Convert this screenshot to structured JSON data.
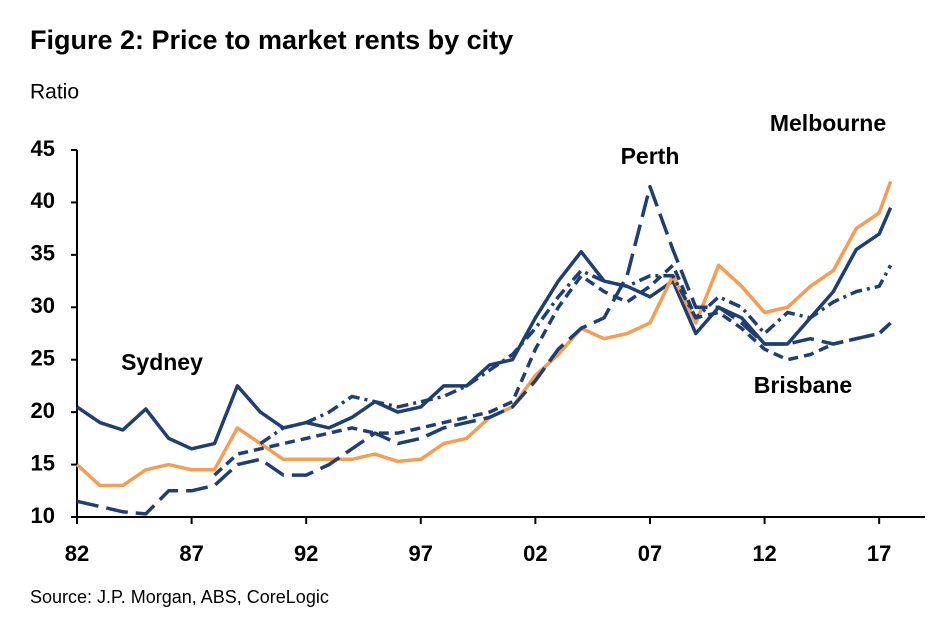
{
  "chart_data": {
    "type": "line",
    "title": "Figure 2: Price to market rents by city",
    "y_label": "Ratio",
    "source": "Source: J.P. Morgan, ABS, CoreLogic",
    "x": [
      1982,
      1983,
      1984,
      1985,
      1986,
      1987,
      1988,
      1989,
      1990,
      1991,
      1992,
      1993,
      1994,
      1995,
      1996,
      1997,
      1998,
      1999,
      2000,
      2001,
      2002,
      2003,
      2004,
      2005,
      2006,
      2007,
      2008,
      2009,
      2010,
      2011,
      2012,
      2013,
      2014,
      2015,
      2016,
      2017,
      2017.5
    ],
    "series": [
      {
        "name": "Sydney",
        "color": "#1f3f73",
        "linestyle": "solid",
        "values": [
          20.5,
          19,
          18.3,
          20.3,
          17.5,
          16.5,
          17,
          22.5,
          20,
          18.5,
          19,
          18.5,
          19.5,
          21,
          20,
          20.5,
          22.5,
          22.5,
          24.5,
          25,
          29,
          32.5,
          35.3,
          32.5,
          32,
          31,
          32.5,
          27.5,
          30,
          29,
          26.5,
          26.5,
          29,
          31.5,
          35.5,
          37,
          39.5
        ]
      },
      {
        "name": "Melbourne",
        "color": "#f79d53",
        "linestyle": "solid",
        "values": [
          15,
          13,
          13,
          14.5,
          15,
          14.5,
          14.5,
          18.5,
          17,
          15.5,
          15.5,
          15.5,
          15.5,
          16,
          15.3,
          15.5,
          17,
          17.5,
          19.5,
          20.5,
          23.5,
          25.5,
          28,
          27,
          27.5,
          28.5,
          33,
          28.5,
          34,
          32,
          29.5,
          30,
          32,
          33.5,
          37.5,
          39,
          42
        ]
      },
      {
        "name": "Perth",
        "color": "#1f3f73",
        "linestyle": "longdash",
        "values": [
          11.5,
          11,
          10.5,
          10.3,
          12.5,
          12.5,
          13,
          15,
          15.5,
          14,
          14,
          15,
          16.5,
          18,
          17,
          17.5,
          18.5,
          19,
          19.5,
          20.5,
          23,
          26,
          28,
          29,
          33,
          41.5,
          35.5,
          30,
          30,
          28.5,
          26.5,
          26.5,
          27,
          26.5,
          27,
          27.5,
          28.5
        ]
      },
      {
        "name": "Brisbane",
        "color": "#1f3f73",
        "linestyle": "dashed",
        "values": [
          null,
          null,
          null,
          null,
          null,
          null,
          14,
          16,
          16.5,
          17,
          17.5,
          18,
          18.5,
          18,
          18,
          18.5,
          19,
          19.5,
          20,
          21,
          26,
          30,
          33,
          31.5,
          30.5,
          32,
          34,
          29,
          29.5,
          28,
          26,
          25,
          25.5,
          26.5,
          27,
          27.5,
          28.5
        ]
      },
      {
        "color": "#1f3f73",
        "linestyle": "dashdot",
        "values": [
          null,
          null,
          null,
          null,
          null,
          null,
          null,
          null,
          17,
          18.5,
          19,
          20,
          21.5,
          21,
          20.5,
          21,
          21.5,
          22.5,
          24,
          25.5,
          28,
          31,
          33.5,
          32.5,
          32,
          33,
          33,
          29,
          31,
          30,
          27.5,
          29.5,
          29,
          30.5,
          31.5,
          32,
          34
        ]
      }
    ],
    "xlim": [
      1982,
      2019
    ],
    "xticks": [
      {
        "value": 1982,
        "label": "82"
      },
      {
        "value": 1987,
        "label": "87"
      },
      {
        "value": 1992,
        "label": "92"
      },
      {
        "value": 1997,
        "label": "97"
      },
      {
        "value": 2002,
        "label": "02"
      },
      {
        "value": 2007,
        "label": "07"
      },
      {
        "value": 2012,
        "label": "12"
      },
      {
        "value": 2017,
        "label": "17"
      }
    ],
    "ylim": [
      10,
      45
    ],
    "yticks": [
      10,
      15,
      20,
      25,
      30,
      35,
      40,
      45
    ],
    "grid": false
  }
}
